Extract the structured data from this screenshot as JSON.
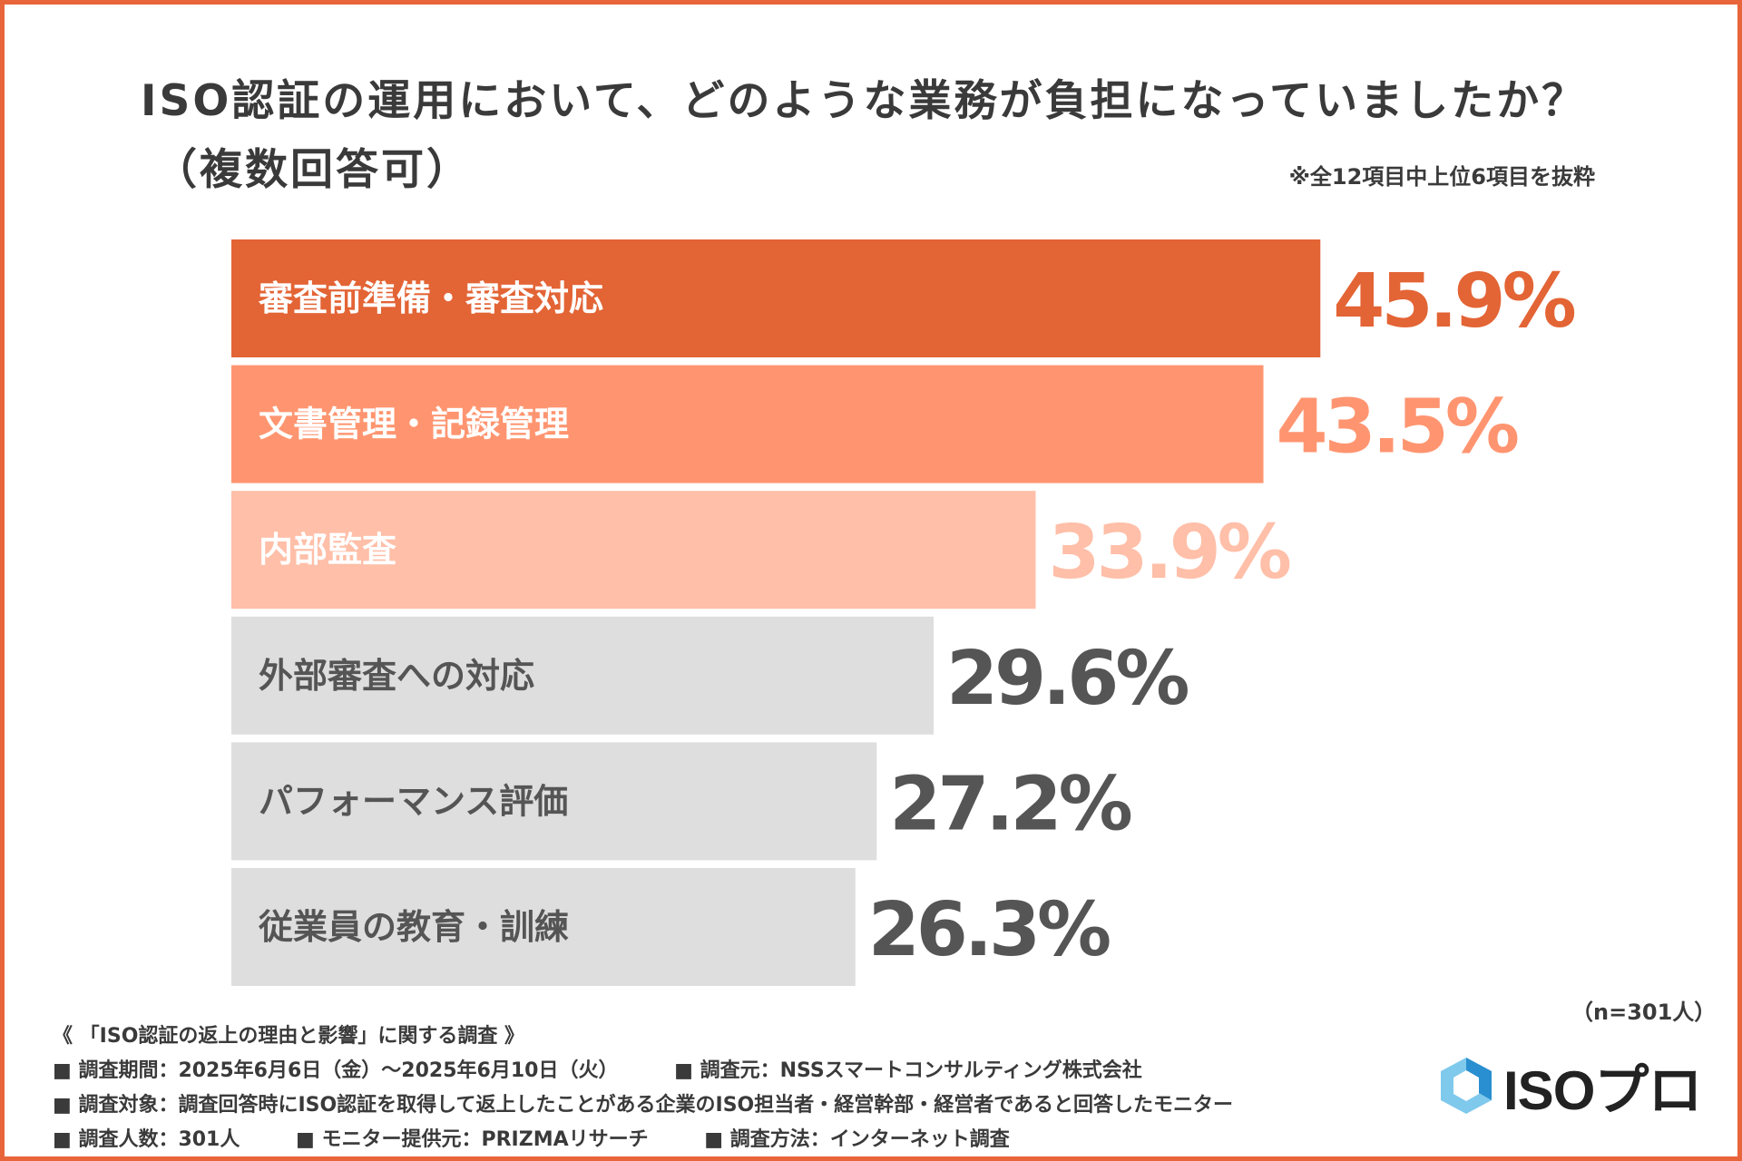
{
  "title": {
    "line1": "ISO認証の運用において、どのような業務が負担になっていましたか？",
    "line2": "（複数回答可）"
  },
  "note": "※全12項目中上位6項目を抜粋",
  "chart_data": {
    "type": "bar",
    "orientation": "horizontal",
    "title": "ISO認証の運用において、どのような業務が負担になっていましたか？（複数回答可）",
    "unit": "%",
    "categories": [
      "審査前準備・審査対応",
      "文書管理・記録管理",
      "内部監査",
      "外部審査への対応",
      "パフォーマンス評価",
      "従業員の教育・訓練"
    ],
    "values": [
      45.9,
      43.5,
      33.9,
      29.6,
      27.2,
      26.3
    ],
    "value_labels": [
      "45.9%",
      "43.5%",
      "33.9%",
      "29.6%",
      "27.2%",
      "26.3%"
    ],
    "xlim": [
      0,
      60
    ],
    "bar_colors": [
      "#E36435",
      "#FF9570",
      "#FFBFA8",
      "#DEDEDE",
      "#DEDEDE",
      "#DEDEDE"
    ],
    "label_text_colors": [
      "#FFFFFF",
      "#FFFFFF",
      "#FFFFFF",
      "#555555",
      "#555555",
      "#555555"
    ],
    "value_colors": [
      "#E36435",
      "#FF9570",
      "#FFBFA8",
      "#555555",
      "#555555",
      "#555555"
    ]
  },
  "sample": "（n=301人）",
  "footer": {
    "survey_title": "《 「ISO認証の返上の理由と影響」に関する調査 》",
    "period": "■ 調査期間：2025年6月6日（金）～2025年6月10日（火）",
    "organizer": "■ 調査元：NSSスマートコンサルティング株式会社",
    "target": "■ 調査対象：調査回答時にISO認証を取得して返上したことがある企業のISO担当者・経営幹部・経営者であると回答したモニター",
    "count": "■ 調査人数：301人",
    "provider": "■ モニター提供元：PRIZMAリサーチ",
    "method": "■ 調査方法：インターネット調査"
  },
  "logo": {
    "text": "ISOプロ",
    "color_light": "#7FC9EC",
    "color_dark": "#2A8FD0"
  }
}
